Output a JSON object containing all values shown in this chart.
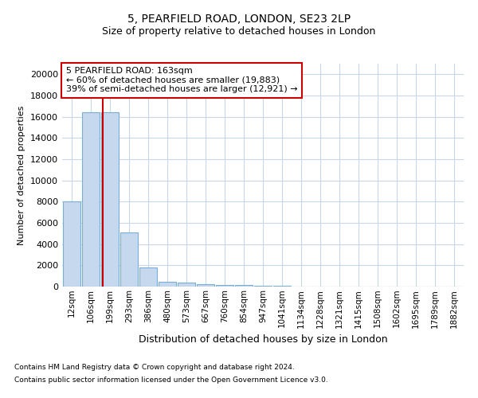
{
  "title1": "5, PEARFIELD ROAD, LONDON, SE23 2LP",
  "title2": "Size of property relative to detached houses in London",
  "xlabel": "Distribution of detached houses by size in London",
  "ylabel": "Number of detached properties",
  "categories": [
    "12sqm",
    "106sqm",
    "199sqm",
    "293sqm",
    "386sqm",
    "480sqm",
    "573sqm",
    "667sqm",
    "760sqm",
    "854sqm",
    "947sqm",
    "1041sqm",
    "1134sqm",
    "1228sqm",
    "1321sqm",
    "1415sqm",
    "1508sqm",
    "1602sqm",
    "1695sqm",
    "1789sqm",
    "1882sqm"
  ],
  "values": [
    8050,
    16400,
    16400,
    5100,
    1800,
    450,
    350,
    220,
    160,
    130,
    100,
    80,
    0,
    0,
    0,
    0,
    0,
    0,
    0,
    0,
    0
  ],
  "bar_color": "#c5d8ee",
  "bar_edge_color": "#7aaed4",
  "vline_color": "#cc0000",
  "vline_pos": 1.63,
  "annotation_text": "5 PEARFIELD ROAD: 163sqm\n← 60% of detached houses are smaller (19,883)\n39% of semi-detached houses are larger (12,921) →",
  "annotation_box_color": "#ffffff",
  "annotation_box_edge": "#cc0000",
  "ylim": [
    0,
    21000
  ],
  "yticks": [
    0,
    2000,
    4000,
    6000,
    8000,
    10000,
    12000,
    14000,
    16000,
    18000,
    20000
  ],
  "footer1": "Contains HM Land Registry data © Crown copyright and database right 2024.",
  "footer2": "Contains public sector information licensed under the Open Government Licence v3.0.",
  "bg_color": "#ffffff",
  "grid_color": "#c8d8ea",
  "title1_fontsize": 10,
  "title2_fontsize": 9,
  "ylabel_fontsize": 8,
  "xlabel_fontsize": 9
}
